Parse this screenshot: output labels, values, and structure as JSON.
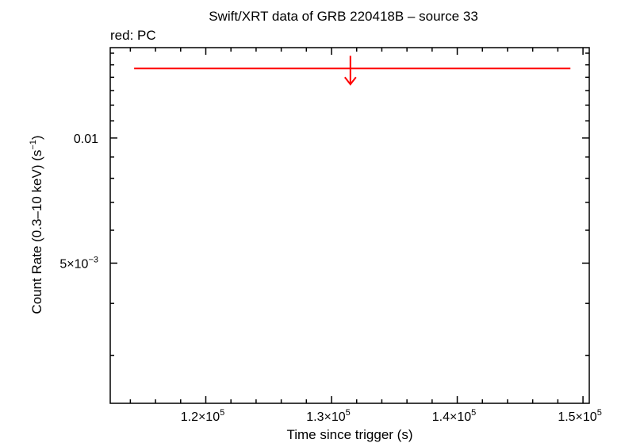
{
  "chart_data": {
    "type": "scatter",
    "title": "Swift/XRT data of GRB 220418B – source 33",
    "subtitle": "red: PC",
    "xlabel": "Time since trigger (s)",
    "ylabel": {
      "main": "Count Rate (0.3–10 keV) (s",
      "sup": "−1",
      "close": ")"
    },
    "x_ticks": [
      {
        "value": 120000,
        "mantissa": "1.2×10",
        "exp": "5"
      },
      {
        "value": 130000,
        "mantissa": "1.3×10",
        "exp": "5"
      },
      {
        "value": 140000,
        "mantissa": "1.4×10",
        "exp": "5"
      },
      {
        "value": 150000,
        "mantissa": "1.5×10",
        "exp": "5"
      }
    ],
    "y_ticks": [
      {
        "value": 0.01,
        "mantissa": "0.01",
        "exp": ""
      },
      {
        "value": 0.005,
        "mantissa": "5×10",
        "exp": "−3"
      }
    ],
    "xlim": [
      112400,
      150500
    ],
    "ylim": [
      0.0023,
      0.0165
    ],
    "y_scale": "log",
    "series": [
      {
        "name": "PC",
        "color": "#ff0000",
        "points": [
          {
            "x": 131500,
            "x_low": 114300,
            "x_high": 149000,
            "y": 0.0147,
            "upper_limit": true
          }
        ]
      }
    ]
  }
}
